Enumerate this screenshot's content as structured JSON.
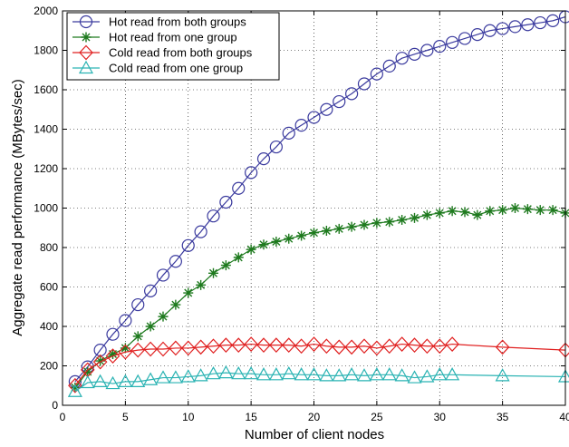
{
  "chart_data": {
    "type": "line",
    "title": "",
    "xlabel": "Number of client nodes",
    "ylabel": "Aggregate read performance (MBytes/sec)",
    "xlim": [
      0,
      40
    ],
    "ylim": [
      0,
      2000
    ],
    "xticks": [
      0,
      5,
      10,
      15,
      20,
      25,
      30,
      35,
      40
    ],
    "yticks": [
      0,
      200,
      400,
      600,
      800,
      1000,
      1200,
      1400,
      1600,
      1800,
      2000
    ],
    "grid": true,
    "legend_position": "top-left",
    "series": [
      {
        "name": "Hot read from both groups",
        "color": "#3a3a9e",
        "marker": "circle",
        "x": [
          1,
          2,
          3,
          4,
          5,
          6,
          7,
          8,
          9,
          10,
          11,
          12,
          13,
          14,
          15,
          16,
          17,
          18,
          19,
          20,
          21,
          22,
          23,
          24,
          25,
          26,
          27,
          28,
          29,
          30,
          31,
          32,
          33,
          34,
          35,
          36,
          37,
          38,
          39,
          40
        ],
        "y": [
          120,
          195,
          280,
          360,
          430,
          510,
          580,
          660,
          730,
          810,
          880,
          960,
          1030,
          1100,
          1180,
          1250,
          1310,
          1380,
          1420,
          1460,
          1500,
          1540,
          1580,
          1630,
          1680,
          1720,
          1760,
          1780,
          1800,
          1820,
          1840,
          1860,
          1880,
          1900,
          1910,
          1920,
          1930,
          1940,
          1950,
          1970
        ]
      },
      {
        "name": "Hot read from one group",
        "color": "#1e7a1e",
        "marker": "star",
        "x": [
          1,
          2,
          3,
          4,
          5,
          6,
          7,
          8,
          9,
          10,
          11,
          12,
          13,
          14,
          15,
          16,
          17,
          18,
          19,
          20,
          21,
          22,
          23,
          24,
          25,
          26,
          27,
          28,
          29,
          30,
          31,
          32,
          33,
          34,
          35,
          36,
          37,
          38,
          39,
          40
        ],
        "y": [
          90,
          170,
          225,
          260,
          290,
          350,
          400,
          450,
          510,
          570,
          610,
          670,
          710,
          750,
          790,
          815,
          830,
          845,
          860,
          875,
          885,
          895,
          905,
          915,
          925,
          930,
          940,
          950,
          965,
          975,
          985,
          980,
          965,
          985,
          990,
          1000,
          995,
          990,
          990,
          975
        ]
      },
      {
        "name": "Cold read from both groups",
        "color": "#e02020",
        "marker": "diamond",
        "x": [
          1,
          2,
          3,
          4,
          5,
          6,
          7,
          8,
          9,
          10,
          11,
          12,
          13,
          14,
          15,
          16,
          17,
          18,
          19,
          20,
          21,
          22,
          23,
          24,
          25,
          26,
          27,
          28,
          29,
          30,
          31,
          35,
          40
        ],
        "y": [
          100,
          180,
          220,
          250,
          270,
          280,
          285,
          285,
          290,
          290,
          295,
          300,
          305,
          305,
          310,
          305,
          305,
          305,
          300,
          310,
          300,
          295,
          295,
          300,
          290,
          300,
          310,
          305,
          300,
          300,
          310,
          295,
          280
        ]
      },
      {
        "name": "Cold read from one group",
        "color": "#2ab3b3",
        "marker": "triangle",
        "x": [
          1,
          2,
          3,
          4,
          5,
          6,
          7,
          8,
          9,
          10,
          11,
          12,
          13,
          14,
          15,
          16,
          17,
          18,
          19,
          20,
          21,
          22,
          23,
          24,
          25,
          26,
          27,
          28,
          29,
          30,
          31,
          35,
          40
        ],
        "y": [
          70,
          115,
          120,
          110,
          120,
          120,
          130,
          140,
          140,
          145,
          150,
          160,
          165,
          160,
          160,
          155,
          155,
          160,
          155,
          155,
          150,
          150,
          155,
          150,
          155,
          155,
          150,
          140,
          145,
          155,
          155,
          150,
          145
        ]
      }
    ]
  }
}
